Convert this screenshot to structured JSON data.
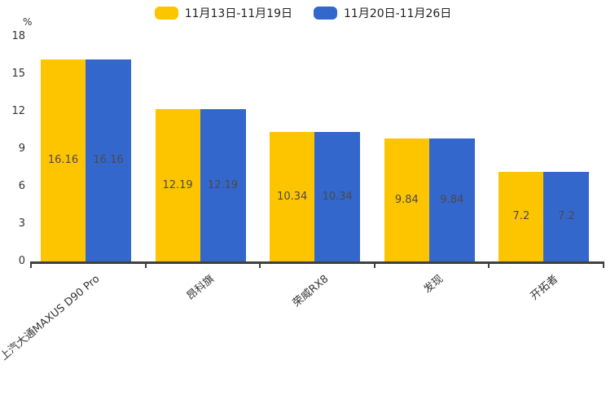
{
  "chart_data": {
    "type": "bar",
    "title": "",
    "unit_label": "%",
    "categories": [
      "上汽大通MAXUS D90 Pro",
      "昂科旗",
      "荣威RX8",
      "发现",
      "开拓者"
    ],
    "series": [
      {
        "name": "11月13日-11月19日",
        "color": "#FDC500",
        "values": [
          16.16,
          12.19,
          10.34,
          9.84,
          7.2
        ]
      },
      {
        "name": "11月20日-11月26日",
        "color": "#3467CC",
        "values": [
          16.16,
          12.19,
          10.34,
          9.84,
          7.2
        ]
      }
    ],
    "bar_value_labels": [
      "16.16",
      "12.19",
      "10.34",
      "9.84",
      "7.2"
    ],
    "yticks": [
      0,
      3,
      6,
      9,
      12,
      15,
      18
    ],
    "ylim": [
      0,
      18
    ],
    "grid": false,
    "legend_position": "top",
    "colors": {
      "axis": "#404040",
      "tick_text": "#333333",
      "bar_value_text": "#4a4a4a",
      "legend_text": "#222222",
      "background": "#ffffff"
    }
  }
}
